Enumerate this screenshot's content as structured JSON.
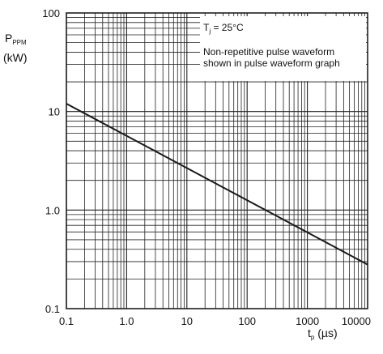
{
  "chart_data": {
    "type": "line",
    "x_scale": "log",
    "y_scale": "log",
    "xlim": [
      0.1,
      10000
    ],
    "ylim": [
      0.1,
      100
    ],
    "x_ticks": [
      "0.1",
      "1.0",
      "10",
      "100",
      "1000",
      "10000"
    ],
    "y_ticks": [
      "0.1",
      "1.0",
      "10",
      "100"
    ],
    "grid": true,
    "y_label": {
      "main": "P",
      "sub": "PPM",
      "unit": "(kW)"
    },
    "x_label": {
      "main": "t",
      "sub": "p",
      "unit": " (µs)"
    },
    "annotations": {
      "condition_main": "T",
      "condition_sub": "j",
      "condition_rest": " = 25°C",
      "note_line1": "Non-repetitive pulse waveform",
      "note_line2": "shown in pulse waveform graph"
    },
    "series": [
      {
        "x": [
          0.1,
          10000
        ],
        "y": [
          12,
          0.28
        ],
        "color": "#1a1a1a"
      }
    ]
  }
}
